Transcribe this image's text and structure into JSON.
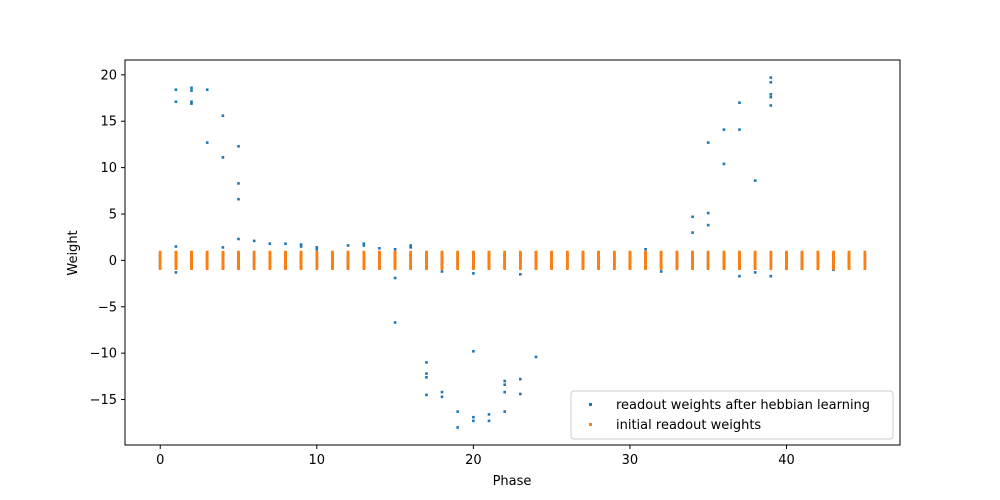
{
  "chart_data": {
    "type": "scatter",
    "title": "",
    "xlabel": "Phase",
    "ylabel": "Weight",
    "xlim": [
      -2.25,
      47.25
    ],
    "ylim": [
      -19.9,
      21.6
    ],
    "xticks": [
      0,
      10,
      20,
      30,
      40
    ],
    "yticks": [
      -15,
      -10,
      -5,
      0,
      5,
      10,
      15,
      20
    ],
    "xtick_labels": [
      "0",
      "10",
      "20",
      "30",
      "40"
    ],
    "ytick_labels": [
      "−15",
      "−10",
      "−5",
      "0",
      "5",
      "10",
      "15",
      "20"
    ],
    "grid": false,
    "legend_position": "lower right",
    "series": [
      {
        "name": "readout weights after hebbian learning",
        "color": "#1f77b4",
        "points": [
          [
            1,
            18.4
          ],
          [
            1,
            17.1
          ],
          [
            1,
            1.5
          ],
          [
            1,
            -1.3
          ],
          [
            2,
            18.6
          ],
          [
            2,
            18.3
          ],
          [
            2,
            17.1
          ],
          [
            2,
            16.9
          ],
          [
            3,
            18.4
          ],
          [
            3,
            12.7
          ],
          [
            4,
            15.6
          ],
          [
            4,
            11.1
          ],
          [
            4,
            1.4
          ],
          [
            5,
            12.3
          ],
          [
            5,
            8.3
          ],
          [
            5,
            6.6
          ],
          [
            5,
            2.3
          ],
          [
            6,
            2.1
          ],
          [
            7,
            1.8
          ],
          [
            8,
            1.8
          ],
          [
            9,
            1.7
          ],
          [
            9,
            1.5
          ],
          [
            10,
            1.4
          ],
          [
            10,
            1.2
          ],
          [
            12,
            1.6
          ],
          [
            13,
            1.8
          ],
          [
            13,
            1.6
          ],
          [
            14,
            1.3
          ],
          [
            15,
            1.2
          ],
          [
            15,
            -1.9
          ],
          [
            15,
            -6.7
          ],
          [
            16,
            1.6
          ],
          [
            16,
            1.4
          ],
          [
            17,
            -11.0
          ],
          [
            17,
            -12.2
          ],
          [
            17,
            -12.6
          ],
          [
            17,
            -14.5
          ],
          [
            18,
            -14.2
          ],
          [
            18,
            -14.7
          ],
          [
            18,
            -1.2
          ],
          [
            19,
            -16.3
          ],
          [
            19,
            -18.0
          ],
          [
            20,
            -9.8
          ],
          [
            20,
            -16.9
          ],
          [
            20,
            -17.3
          ],
          [
            20,
            -1.4
          ],
          [
            21,
            -16.6
          ],
          [
            21,
            -17.3
          ],
          [
            22,
            -13.0
          ],
          [
            22,
            -13.4
          ],
          [
            22,
            -14.2
          ],
          [
            22,
            -16.3
          ],
          [
            23,
            -12.8
          ],
          [
            23,
            -14.4
          ],
          [
            23,
            -1.5
          ],
          [
            24,
            -10.4
          ],
          [
            31,
            1.2
          ],
          [
            32,
            -1.2
          ],
          [
            34,
            4.7
          ],
          [
            34,
            3.0
          ],
          [
            35,
            12.7
          ],
          [
            35,
            5.1
          ],
          [
            35,
            3.8
          ],
          [
            36,
            14.1
          ],
          [
            36,
            10.4
          ],
          [
            37,
            17.0
          ],
          [
            37,
            14.1
          ],
          [
            37,
            -1.7
          ],
          [
            38,
            8.6
          ],
          [
            38,
            -1.3
          ],
          [
            39,
            19.7
          ],
          [
            39,
            19.2
          ],
          [
            39,
            17.9
          ],
          [
            39,
            17.6
          ],
          [
            39,
            16.7
          ],
          [
            39,
            -1.7
          ],
          [
            41,
            -0.9
          ],
          [
            43,
            -1.0
          ],
          [
            44,
            -0.4
          ],
          [
            45,
            0.5
          ]
        ]
      },
      {
        "name": "initial readout weights",
        "color": "#ff7f0e",
        "points": []
      }
    ]
  }
}
